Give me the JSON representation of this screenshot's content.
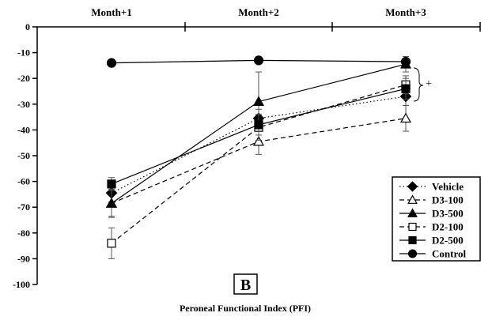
{
  "chart_data": {
    "type": "line",
    "title": "",
    "panel_label": "B",
    "caption": "Peroneal Functional Index (PFI)",
    "categories": [
      "Month+1",
      "Month+2",
      "Month+3"
    ],
    "ylim": [
      -100,
      0
    ],
    "yticks": [
      0,
      -10,
      -20,
      -30,
      -40,
      -50,
      -60,
      -70,
      -80,
      -90,
      -100
    ],
    "grid": false,
    "legend_position": "bottom-right",
    "annotation": "+",
    "series": [
      {
        "name": "Vehicle",
        "values": [
          -64.5,
          -35.5,
          -27
        ],
        "errors": [
          3.5,
          3.5,
          3.5
        ],
        "marker": "diamond",
        "fill": "filled",
        "dash": "dotted",
        "color": "#000000"
      },
      {
        "name": "D3-100",
        "values": [
          -68.5,
          -44.5,
          -35.5
        ],
        "errors": [
          5,
          5,
          5
        ],
        "marker": "triangle",
        "fill": "open",
        "dash": "dashed",
        "color": "#000000"
      },
      {
        "name": "D3-500",
        "values": [
          -68.5,
          -29,
          -14.5
        ],
        "errors": [
          5.5,
          11.5,
          3
        ],
        "marker": "triangle",
        "fill": "filled",
        "dash": "solid",
        "color": "#000000"
      },
      {
        "name": "D2-100",
        "values": [
          -84,
          -39,
          -22.5
        ],
        "errors": [
          6,
          5,
          3.5
        ],
        "marker": "square",
        "fill": "open",
        "dash": "dashed",
        "color": "#000000"
      },
      {
        "name": "D2-500",
        "values": [
          -61,
          -38,
          -24
        ],
        "errors": [
          2.5,
          4,
          4
        ],
        "marker": "square",
        "fill": "filled",
        "dash": "solid",
        "color": "#000000"
      },
      {
        "name": "Control",
        "values": [
          -14,
          -13,
          -13.5
        ],
        "errors": [
          0.5,
          1,
          1
        ],
        "marker": "circle",
        "fill": "filled",
        "dash": "solid",
        "color": "#000000"
      }
    ]
  }
}
